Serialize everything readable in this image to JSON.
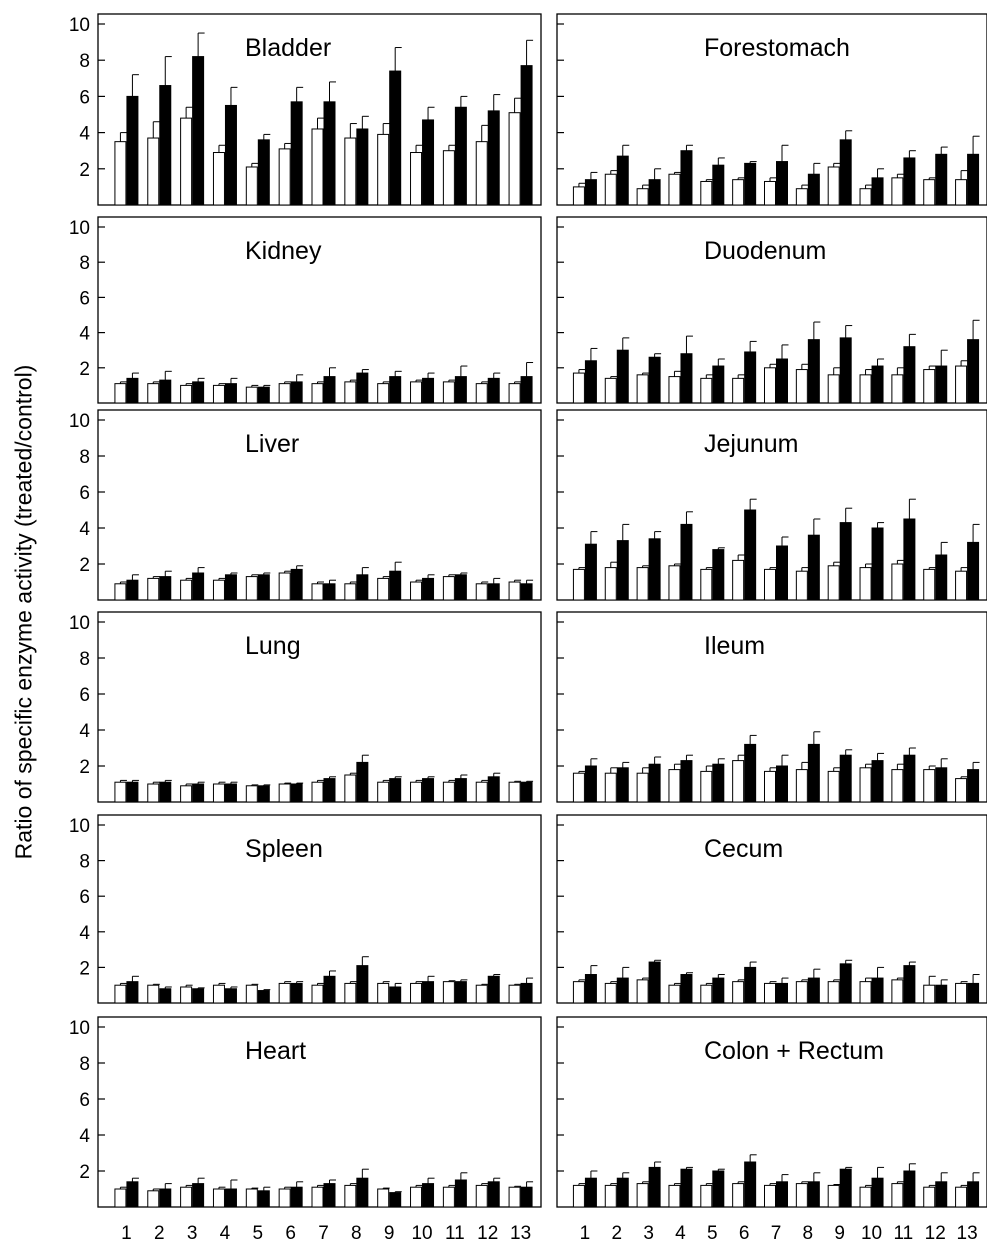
{
  "figure": {
    "ylabel": "Ratio of specific enzyme activity (treated/control)"
  },
  "chart_data": [
    {
      "type": "bar",
      "title": "Bladder",
      "categories": [
        "1",
        "2",
        "3",
        "4",
        "5",
        "6",
        "7",
        "8",
        "9",
        "10",
        "11",
        "12",
        "13"
      ],
      "ylim": [
        0,
        10
      ],
      "yticks": [
        2,
        4,
        6,
        8,
        10
      ],
      "yticks_labeled": true,
      "xticks_labeled": false,
      "series": [
        {
          "values": [
            3.5,
            3.7,
            4.8,
            2.9,
            2.1,
            3.1,
            4.2,
            3.7,
            3.9,
            2.9,
            3.0,
            3.5,
            5.1
          ],
          "errors": [
            0.5,
            0.9,
            0.6,
            0.4,
            0.2,
            0.3,
            0.6,
            0.8,
            0.6,
            0.4,
            0.3,
            0.9,
            0.8
          ]
        },
        {
          "values": [
            6.0,
            6.6,
            8.2,
            5.5,
            3.6,
            5.7,
            5.7,
            4.2,
            7.4,
            4.7,
            5.4,
            5.2,
            7.7
          ],
          "errors": [
            1.2,
            1.6,
            1.3,
            1.0,
            0.3,
            0.8,
            1.1,
            0.7,
            1.3,
            0.7,
            0.6,
            0.9,
            1.4
          ]
        }
      ]
    },
    {
      "type": "bar",
      "title": "Forestomach",
      "categories": [
        "1",
        "2",
        "3",
        "4",
        "5",
        "6",
        "7",
        "8",
        "9",
        "10",
        "11",
        "12",
        "13"
      ],
      "ylim": [
        0,
        10
      ],
      "yticks": [
        2,
        4,
        6,
        8,
        10
      ],
      "yticks_labeled": false,
      "xticks_labeled": false,
      "series": [
        {
          "values": [
            1.0,
            1.7,
            0.9,
            1.7,
            1.3,
            1.4,
            1.3,
            0.9,
            2.1,
            0.9,
            1.5,
            1.4,
            1.4
          ],
          "errors": [
            0.2,
            0.2,
            0.2,
            0.1,
            0.1,
            0.1,
            0.2,
            0.2,
            0.2,
            0.2,
            0.2,
            0.1,
            0.5
          ]
        },
        {
          "values": [
            1.4,
            2.7,
            1.4,
            3.0,
            2.2,
            2.3,
            2.4,
            1.7,
            3.6,
            1.5,
            2.6,
            2.8,
            2.8
          ],
          "errors": [
            0.4,
            0.6,
            0.6,
            0.3,
            0.4,
            0.1,
            0.9,
            0.6,
            0.5,
            0.5,
            0.4,
            0.4,
            1.0
          ]
        }
      ]
    },
    {
      "type": "bar",
      "title": "Kidney",
      "categories": [
        "1",
        "2",
        "3",
        "4",
        "5",
        "6",
        "7",
        "8",
        "9",
        "10",
        "11",
        "12",
        "13"
      ],
      "ylim": [
        0,
        10
      ],
      "yticks": [
        2,
        4,
        6,
        8,
        10
      ],
      "yticks_labeled": true,
      "xticks_labeled": false,
      "series": [
        {
          "values": [
            1.1,
            1.1,
            1.0,
            1.0,
            0.9,
            1.1,
            1.1,
            1.2,
            1.1,
            1.2,
            1.2,
            1.1,
            1.1
          ],
          "errors": [
            0.1,
            0.1,
            0.1,
            0.1,
            0.1,
            0.1,
            0.1,
            0.1,
            0.1,
            0.1,
            0.1,
            0.1,
            0.1
          ]
        },
        {
          "values": [
            1.4,
            1.3,
            1.2,
            1.1,
            0.9,
            1.2,
            1.5,
            1.7,
            1.5,
            1.4,
            1.5,
            1.4,
            1.5
          ],
          "errors": [
            0.3,
            0.5,
            0.2,
            0.3,
            0.1,
            0.4,
            0.5,
            0.2,
            0.3,
            0.3,
            0.6,
            0.3,
            0.8
          ]
        }
      ]
    },
    {
      "type": "bar",
      "title": "Duodenum",
      "categories": [
        "1",
        "2",
        "3",
        "4",
        "5",
        "6",
        "7",
        "8",
        "9",
        "10",
        "11",
        "12",
        "13"
      ],
      "ylim": [
        0,
        10
      ],
      "yticks": [
        2,
        4,
        6,
        8,
        10
      ],
      "yticks_labeled": false,
      "xticks_labeled": false,
      "series": [
        {
          "values": [
            1.7,
            1.4,
            1.6,
            1.5,
            1.4,
            1.4,
            2.0,
            1.9,
            1.6,
            1.6,
            1.6,
            1.9,
            2.1
          ],
          "errors": [
            0.2,
            0.1,
            0.1,
            0.3,
            0.2,
            0.2,
            0.2,
            0.3,
            0.4,
            0.3,
            0.4,
            0.2,
            0.3
          ]
        },
        {
          "values": [
            2.4,
            3.0,
            2.6,
            2.8,
            2.1,
            2.9,
            2.5,
            3.6,
            3.7,
            2.1,
            3.2,
            2.1,
            3.6
          ],
          "errors": [
            0.7,
            0.7,
            0.2,
            1.0,
            0.4,
            0.6,
            0.8,
            1.0,
            0.7,
            0.4,
            0.7,
            0.9,
            1.1
          ]
        }
      ]
    },
    {
      "type": "bar",
      "title": "Liver",
      "categories": [
        "1",
        "2",
        "3",
        "4",
        "5",
        "6",
        "7",
        "8",
        "9",
        "10",
        "11",
        "12",
        "13"
      ],
      "ylim": [
        0,
        10
      ],
      "yticks": [
        2,
        4,
        6,
        8,
        10
      ],
      "yticks_labeled": true,
      "xticks_labeled": false,
      "series": [
        {
          "values": [
            0.9,
            1.2,
            1.1,
            1.1,
            1.3,
            1.5,
            0.9,
            0.9,
            1.2,
            1.0,
            1.3,
            0.9,
            1.0
          ],
          "errors": [
            0.1,
            0.1,
            0.1,
            0.1,
            0.1,
            0.1,
            0.1,
            0.1,
            0.1,
            0.1,
            0.1,
            0.1,
            0.1
          ]
        },
        {
          "values": [
            1.1,
            1.3,
            1.5,
            1.4,
            1.4,
            1.7,
            0.9,
            1.4,
            1.6,
            1.2,
            1.4,
            0.9,
            0.9
          ],
          "errors": [
            0.3,
            0.3,
            0.3,
            0.1,
            0.1,
            0.2,
            0.2,
            0.4,
            0.5,
            0.2,
            0.1,
            0.3,
            0.2
          ]
        }
      ]
    },
    {
      "type": "bar",
      "title": "Jejunum",
      "categories": [
        "1",
        "2",
        "3",
        "4",
        "5",
        "6",
        "7",
        "8",
        "9",
        "10",
        "11",
        "12",
        "13"
      ],
      "ylim": [
        0,
        10
      ],
      "yticks": [
        2,
        4,
        6,
        8,
        10
      ],
      "yticks_labeled": false,
      "xticks_labeled": false,
      "series": [
        {
          "values": [
            1.7,
            1.8,
            1.8,
            1.9,
            1.7,
            2.2,
            1.7,
            1.6,
            1.9,
            1.8,
            2.0,
            1.7,
            1.6
          ],
          "errors": [
            0.1,
            0.3,
            0.1,
            0.1,
            0.1,
            0.3,
            0.1,
            0.2,
            0.2,
            0.2,
            0.2,
            0.1,
            0.2
          ]
        },
        {
          "values": [
            3.1,
            3.3,
            3.4,
            4.2,
            2.8,
            5.0,
            3.0,
            3.6,
            4.3,
            4.0,
            4.5,
            2.5,
            3.2
          ],
          "errors": [
            0.7,
            0.9,
            0.4,
            0.7,
            0.1,
            0.6,
            0.5,
            0.9,
            0.8,
            0.3,
            1.1,
            0.7,
            1.0
          ]
        }
      ]
    },
    {
      "type": "bar",
      "title": "Lung",
      "categories": [
        "1",
        "2",
        "3",
        "4",
        "5",
        "6",
        "7",
        "8",
        "9",
        "10",
        "11",
        "12",
        "13"
      ],
      "ylim": [
        0,
        10
      ],
      "yticks": [
        2,
        4,
        6,
        8,
        10
      ],
      "yticks_labeled": true,
      "xticks_labeled": false,
      "series": [
        {
          "values": [
            1.1,
            1.0,
            0.9,
            1.0,
            0.9,
            1.0,
            1.1,
            1.5,
            1.1,
            1.1,
            1.1,
            1.1,
            1.1
          ],
          "errors": [
            0.1,
            0.1,
            0.1,
            0.1,
            0.05,
            0.05,
            0.1,
            0.1,
            0.1,
            0.1,
            0.1,
            0.1,
            0.05
          ]
        },
        {
          "values": [
            1.1,
            1.1,
            1.0,
            1.0,
            0.9,
            1.0,
            1.3,
            2.2,
            1.3,
            1.3,
            1.3,
            1.4,
            1.1
          ],
          "errors": [
            0.1,
            0.1,
            0.1,
            0.1,
            0.05,
            0.05,
            0.1,
            0.4,
            0.1,
            0.1,
            0.2,
            0.2,
            0.05
          ]
        }
      ]
    },
    {
      "type": "bar",
      "title": "Ileum",
      "categories": [
        "1",
        "2",
        "3",
        "4",
        "5",
        "6",
        "7",
        "8",
        "9",
        "10",
        "11",
        "12",
        "13"
      ],
      "ylim": [
        0,
        10
      ],
      "yticks": [
        2,
        4,
        6,
        8,
        10
      ],
      "yticks_labeled": false,
      "xticks_labeled": false,
      "series": [
        {
          "values": [
            1.6,
            1.6,
            1.6,
            1.8,
            1.7,
            2.3,
            1.7,
            1.8,
            1.7,
            1.9,
            1.8,
            1.8,
            1.3
          ],
          "errors": [
            0.1,
            0.3,
            0.3,
            0.3,
            0.3,
            0.3,
            0.2,
            0.4,
            0.2,
            0.2,
            0.3,
            0.2,
            0.1
          ]
        },
        {
          "values": [
            2.0,
            1.9,
            2.1,
            2.3,
            2.1,
            3.2,
            2.0,
            3.2,
            2.6,
            2.3,
            2.6,
            1.9,
            1.8
          ],
          "errors": [
            0.4,
            0.3,
            0.4,
            0.3,
            0.3,
            0.5,
            0.6,
            0.7,
            0.3,
            0.4,
            0.4,
            0.5,
            0.4
          ]
        }
      ]
    },
    {
      "type": "bar",
      "title": "Spleen",
      "categories": [
        "1",
        "2",
        "3",
        "4",
        "5",
        "6",
        "7",
        "8",
        "9",
        "10",
        "11",
        "12",
        "13"
      ],
      "ylim": [
        0,
        10
      ],
      "yticks": [
        2,
        4,
        6,
        8,
        10
      ],
      "yticks_labeled": true,
      "xticks_labeled": false,
      "series": [
        {
          "values": [
            1.0,
            1.0,
            0.9,
            1.0,
            1.0,
            1.1,
            1.0,
            1.1,
            1.1,
            1.1,
            1.2,
            1.0,
            1.0
          ],
          "errors": [
            0.1,
            0.05,
            0.1,
            0.1,
            0.05,
            0.1,
            0.1,
            0.1,
            0.1,
            0.1,
            0.05,
            0.05,
            0.05
          ]
        },
        {
          "values": [
            1.2,
            0.8,
            0.8,
            0.8,
            0.7,
            1.1,
            1.5,
            2.1,
            0.9,
            1.2,
            1.2,
            1.5,
            1.1
          ],
          "errors": [
            0.3,
            0.1,
            0.05,
            0.1,
            0.05,
            0.1,
            0.3,
            0.5,
            0.2,
            0.3,
            0.1,
            0.1,
            0.3
          ]
        }
      ]
    },
    {
      "type": "bar",
      "title": "Cecum",
      "categories": [
        "1",
        "2",
        "3",
        "4",
        "5",
        "6",
        "7",
        "8",
        "9",
        "10",
        "11",
        "12",
        "13"
      ],
      "ylim": [
        0,
        10
      ],
      "yticks": [
        2,
        4,
        6,
        8,
        10
      ],
      "yticks_labeled": false,
      "xticks_labeled": false,
      "series": [
        {
          "values": [
            1.2,
            1.1,
            1.3,
            1.0,
            1.0,
            1.2,
            1.1,
            1.2,
            1.2,
            1.2,
            1.3,
            1.0,
            1.1
          ],
          "errors": [
            0.1,
            0.1,
            0.1,
            0.1,
            0.1,
            0.1,
            0.1,
            0.1,
            0.1,
            0.2,
            0.1,
            0.5,
            0.1
          ]
        },
        {
          "values": [
            1.6,
            1.4,
            2.3,
            1.6,
            1.4,
            2.0,
            1.1,
            1.4,
            2.2,
            1.4,
            2.1,
            1.0,
            1.1
          ],
          "errors": [
            0.5,
            0.6,
            0.1,
            0.1,
            0.2,
            0.3,
            0.3,
            0.5,
            0.2,
            0.6,
            0.2,
            0.3,
            0.5
          ]
        }
      ]
    },
    {
      "type": "bar",
      "title": "Heart",
      "categories": [
        "1",
        "2",
        "3",
        "4",
        "5",
        "6",
        "7",
        "8",
        "9",
        "10",
        "11",
        "12",
        "13"
      ],
      "ylim": [
        0,
        10
      ],
      "yticks": [
        2,
        4,
        6,
        8,
        10
      ],
      "yticks_labeled": true,
      "xticks_labeled": true,
      "series": [
        {
          "values": [
            1.0,
            0.9,
            1.1,
            1.0,
            1.0,
            1.0,
            1.1,
            1.2,
            1.0,
            1.1,
            1.1,
            1.2,
            1.1
          ],
          "errors": [
            0.1,
            0.1,
            0.1,
            0.1,
            0.05,
            0.1,
            0.1,
            0.1,
            0.05,
            0.1,
            0.1,
            0.1,
            0.05
          ]
        },
        {
          "values": [
            1.4,
            1.0,
            1.3,
            1.0,
            0.9,
            1.1,
            1.3,
            1.6,
            0.8,
            1.3,
            1.5,
            1.4,
            1.1
          ],
          "errors": [
            0.2,
            0.3,
            0.3,
            0.5,
            0.2,
            0.3,
            0.2,
            0.5,
            0.05,
            0.3,
            0.4,
            0.2,
            0.3
          ]
        }
      ]
    },
    {
      "type": "bar",
      "title": "Colon + Rectum",
      "categories": [
        "1",
        "2",
        "3",
        "4",
        "5",
        "6",
        "7",
        "8",
        "9",
        "10",
        "11",
        "12",
        "13"
      ],
      "ylim": [
        0,
        10
      ],
      "yticks": [
        2,
        4,
        6,
        8,
        10
      ],
      "yticks_labeled": false,
      "xticks_labeled": true,
      "series": [
        {
          "values": [
            1.2,
            1.2,
            1.3,
            1.2,
            1.2,
            1.3,
            1.2,
            1.3,
            1.2,
            1.1,
            1.3,
            1.1,
            1.1
          ],
          "errors": [
            0.1,
            0.1,
            0.1,
            0.1,
            0.1,
            0.1,
            0.1,
            0.1,
            0.05,
            0.1,
            0.1,
            0.1,
            0.1
          ]
        },
        {
          "values": [
            1.6,
            1.6,
            2.2,
            2.1,
            2.0,
            2.5,
            1.4,
            1.4,
            2.1,
            1.6,
            2.0,
            1.4,
            1.4
          ],
          "errors": [
            0.4,
            0.3,
            0.3,
            0.1,
            0.1,
            0.4,
            0.4,
            0.5,
            0.1,
            0.6,
            0.4,
            0.5,
            0.5
          ]
        }
      ]
    }
  ]
}
